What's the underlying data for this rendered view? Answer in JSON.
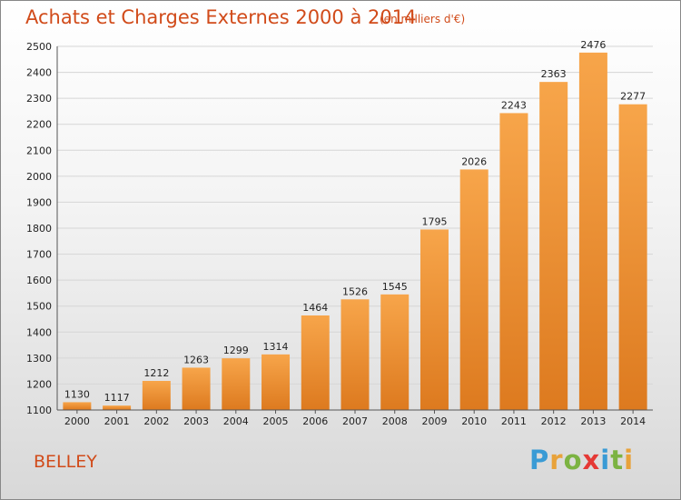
{
  "header": {
    "title": "Achats et Charges Externes 2000 à 2014",
    "subtitle": "(en milliers d'€)"
  },
  "footer": {
    "commune": "BELLEY",
    "logo": {
      "text": "Proxiti",
      "letters": [
        "P",
        "r",
        "o",
        "x",
        "i",
        "t",
        "i"
      ],
      "colors": [
        "#3a9bd5",
        "#e8a23a",
        "#7cb342",
        "#e53935",
        "#3a9bd5",
        "#7cb342",
        "#e8a23a"
      ]
    }
  },
  "colors": {
    "bar_light": "#f7a54a",
    "bar_dark": "#dd7a1f",
    "title": "#d14b1a"
  },
  "chart_data": {
    "type": "bar",
    "title": "Achats et Charges Externes 2000 à 2014",
    "categories": [
      "2000",
      "2001",
      "2002",
      "2003",
      "2004",
      "2005",
      "2006",
      "2007",
      "2008",
      "2009",
      "2010",
      "2011",
      "2012",
      "2013",
      "2014"
    ],
    "values": [
      1130,
      1117,
      1212,
      1263,
      1299,
      1314,
      1464,
      1526,
      1545,
      1795,
      2026,
      2243,
      2363,
      2476,
      2277
    ],
    "ylim": [
      1100,
      2500
    ],
    "yticks": [
      1100,
      1200,
      1300,
      1400,
      1500,
      1600,
      1700,
      1800,
      1900,
      2000,
      2100,
      2200,
      2300,
      2400,
      2500
    ],
    "grid": true
  }
}
